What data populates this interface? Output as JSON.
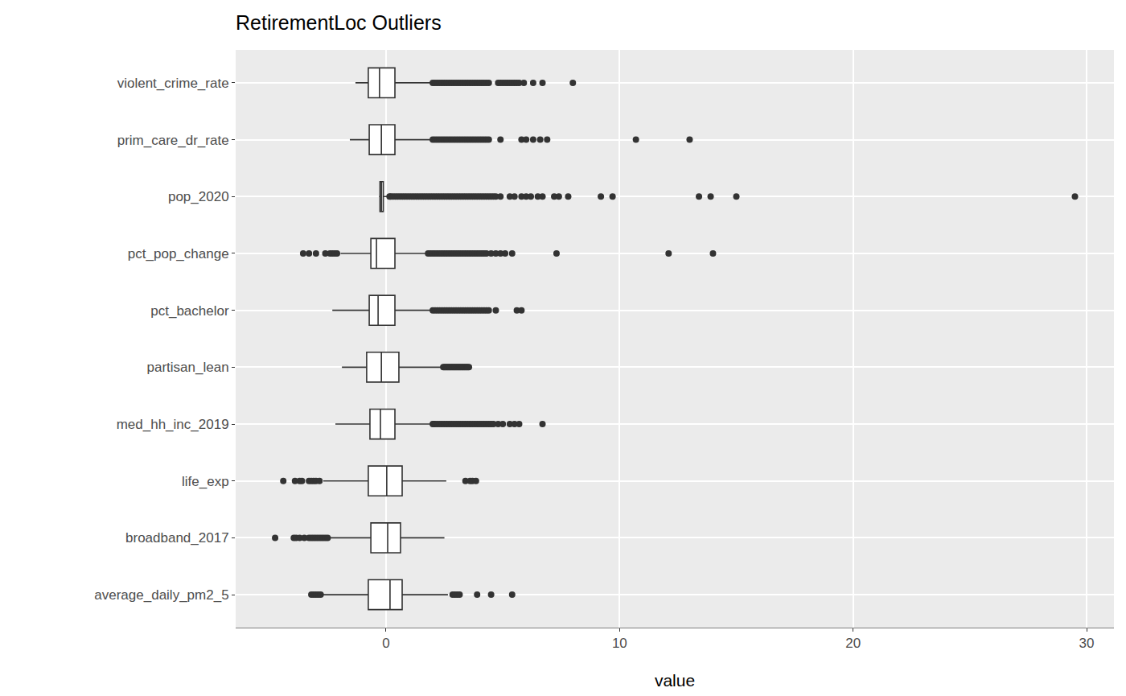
{
  "chart_data": {
    "type": "box",
    "title": "RetirementLoc Outliers",
    "x_label": "value",
    "orientation": "horizontal",
    "grid": true,
    "color": "#333333",
    "categories": [
      "average_daily_pm2_5",
      "broadband_2017",
      "life_exp",
      "med_hh_inc_2019",
      "partisan_lean",
      "pct_bachelor",
      "pct_pop_change",
      "pop_2020",
      "prim_care_dr_rate",
      "violent_crime_rate"
    ],
    "q1": [
      -0.76,
      -0.65,
      -0.76,
      -0.69,
      -0.83,
      -0.72,
      -0.65,
      -0.26,
      -0.72,
      -0.76
    ],
    "median": [
      0.17,
      0.07,
      0.03,
      -0.24,
      -0.2,
      -0.34,
      -0.41,
      -0.2,
      -0.2,
      -0.28
    ],
    "q3": [
      0.69,
      0.62,
      0.69,
      0.38,
      0.55,
      0.38,
      0.38,
      -0.12,
      0.38,
      0.38
    ],
    "lower_whisker": [
      -2.75,
      -2.45,
      -2.69,
      -2.17,
      -1.89,
      -2.3,
      -1.95,
      -0.3,
      -1.55,
      -1.31
    ],
    "upper_whisker": [
      2.65,
      2.5,
      2.58,
      1.9,
      2.35,
      1.9,
      1.72,
      0.1,
      1.96,
      1.9
    ],
    "outliers": [
      [
        -3.2,
        -3.1,
        -3.0,
        -2.9,
        -2.8,
        2.85,
        2.95,
        3.05,
        3.15,
        3.9,
        4.5,
        5.4
      ],
      [
        -4.75,
        -3.95,
        -3.85,
        -3.7,
        -3.5,
        -3.3,
        -3.2,
        -3.1,
        -3.0,
        -2.9,
        -2.8,
        -2.7,
        -2.6,
        -2.5
      ],
      [
        -4.4,
        -3.9,
        -3.7,
        -3.6,
        -3.3,
        -3.2,
        -3.1,
        -3.0,
        -2.85,
        3.4,
        3.6,
        3.7,
        3.85
      ],
      [
        2.0,
        2.05,
        2.1,
        2.2,
        2.3,
        2.4,
        2.5,
        2.6,
        2.7,
        2.8,
        2.9,
        3.0,
        3.1,
        3.2,
        3.3,
        3.4,
        3.5,
        3.6,
        3.7,
        3.8,
        3.9,
        4.0,
        4.1,
        4.2,
        4.3,
        4.4,
        4.5,
        4.6,
        4.8,
        5.0,
        5.3,
        5.5,
        5.7,
        6.7
      ],
      [
        2.45,
        2.5,
        2.55,
        2.6,
        2.65,
        2.7,
        2.75,
        2.8,
        2.85,
        2.9,
        2.95,
        3.0,
        3.05,
        3.1,
        3.15,
        3.2,
        3.25,
        3.3,
        3.35,
        3.4,
        3.45,
        3.5,
        3.55
      ],
      [
        2.0,
        2.1,
        2.2,
        2.3,
        2.4,
        2.5,
        2.6,
        2.7,
        2.8,
        2.9,
        3.0,
        3.1,
        3.2,
        3.3,
        3.4,
        3.5,
        3.6,
        3.7,
        3.8,
        3.9,
        4.0,
        4.1,
        4.2,
        4.3,
        4.4,
        4.7,
        5.6,
        5.8
      ],
      [
        -3.55,
        -3.3,
        -3.0,
        -2.6,
        -2.4,
        -2.3,
        -2.2,
        -2.1,
        1.8,
        1.9,
        2.0,
        2.1,
        2.2,
        2.3,
        2.4,
        2.5,
        2.6,
        2.7,
        2.8,
        2.9,
        3.0,
        3.1,
        3.2,
        3.3,
        3.4,
        3.5,
        3.6,
        3.7,
        3.8,
        3.9,
        4.0,
        4.1,
        4.2,
        4.3,
        4.5,
        4.7,
        4.9,
        5.1,
        5.4,
        7.3,
        12.1,
        14.0
      ],
      [
        0.15,
        0.2,
        0.3,
        0.4,
        0.5,
        0.6,
        0.7,
        0.8,
        0.9,
        1.0,
        1.1,
        1.2,
        1.3,
        1.4,
        1.5,
        1.6,
        1.7,
        1.8,
        1.9,
        2.0,
        2.1,
        2.2,
        2.3,
        2.4,
        2.5,
        2.6,
        2.7,
        2.8,
        2.9,
        3.0,
        3.1,
        3.2,
        3.3,
        3.4,
        3.5,
        3.6,
        3.7,
        3.8,
        3.9,
        4.0,
        4.1,
        4.2,
        4.3,
        4.4,
        4.5,
        4.6,
        4.7,
        4.9,
        5.3,
        5.5,
        5.8,
        6.0,
        6.2,
        6.5,
        6.7,
        7.2,
        7.4,
        7.8,
        9.2,
        9.7,
        13.4,
        13.9,
        15.0,
        29.5
      ],
      [
        2.0,
        2.1,
        2.2,
        2.3,
        2.4,
        2.5,
        2.6,
        2.7,
        2.8,
        2.9,
        3.0,
        3.1,
        3.2,
        3.3,
        3.4,
        3.5,
        3.6,
        3.7,
        3.8,
        3.9,
        4.0,
        4.1,
        4.2,
        4.3,
        4.4,
        4.9,
        5.8,
        6.0,
        6.3,
        6.6,
        6.9,
        10.7,
        13.0
      ],
      [
        2.0,
        2.1,
        2.2,
        2.3,
        2.4,
        2.5,
        2.6,
        2.7,
        2.8,
        2.9,
        3.0,
        3.1,
        3.2,
        3.3,
        3.4,
        3.5,
        3.6,
        3.7,
        3.8,
        3.9,
        4.0,
        4.1,
        4.2,
        4.3,
        4.4,
        4.8,
        4.9,
        5.0,
        5.1,
        5.2,
        5.3,
        5.4,
        5.5,
        5.6,
        5.7,
        5.9,
        6.3,
        6.7,
        8.0
      ]
    ],
    "xlim": [
      -6.44,
      31.17
    ],
    "xticks": [
      0,
      10,
      20,
      30
    ]
  }
}
